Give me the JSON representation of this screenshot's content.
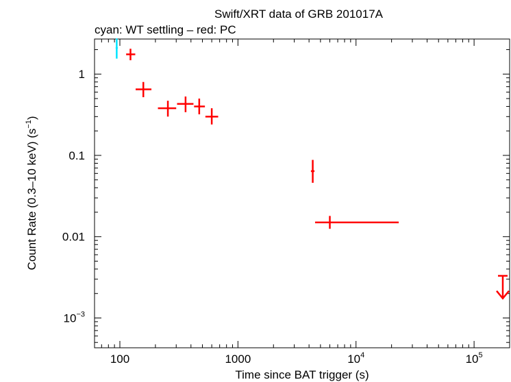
{
  "chart_data": {
    "type": "scatter",
    "title": "Swift/XRT data of GRB 201017A",
    "subtitle": "cyan: WT settling – red: PC",
    "xlabel": "Time since BAT trigger (s)",
    "ylabel": {
      "main": "Count Rate (0.3–10 keV) (s",
      "sup": "−1",
      "close": ")"
    },
    "xscale": "log",
    "yscale": "log",
    "xlim": [
      61,
      200000
    ],
    "ylim": [
      0.00043,
      2.7
    ],
    "x_ticks": [
      {
        "value": 100,
        "base": "100",
        "exp": ""
      },
      {
        "value": 1000,
        "base": "1000",
        "exp": ""
      },
      {
        "value": 10000,
        "base": "10",
        "exp": "4"
      },
      {
        "value": 100000,
        "base": "10",
        "exp": "5"
      }
    ],
    "y_ticks": [
      {
        "value": 1,
        "base": "1",
        "exp": ""
      },
      {
        "value": 0.1,
        "base": "0.1",
        "exp": ""
      },
      {
        "value": 0.01,
        "base": "0.01",
        "exp": ""
      },
      {
        "value": 0.001,
        "base": "10",
        "exp": "−3"
      }
    ],
    "grid": false,
    "series": [
      {
        "name": "WT settling",
        "color": "#00e5ff",
        "points": [
          {
            "x": 94,
            "xerr": [
              94,
              94
            ],
            "y": 2.1,
            "yerr": [
              1.55,
              2.75
            ]
          }
        ]
      },
      {
        "name": "PC",
        "color": "#ff0000",
        "points": [
          {
            "x": 123,
            "xerr": [
              113,
              135
            ],
            "y": 1.75,
            "yerr": [
              1.48,
              2.05
            ]
          },
          {
            "x": 158,
            "xerr": [
              136,
              185
            ],
            "y": 0.65,
            "yerr": [
              0.52,
              0.8
            ]
          },
          {
            "x": 255,
            "xerr": [
              210,
              300
            ],
            "y": 0.38,
            "yerr": [
              0.3,
              0.47
            ]
          },
          {
            "x": 360,
            "xerr": [
              305,
              420
            ],
            "y": 0.43,
            "yerr": [
              0.34,
              0.53
            ]
          },
          {
            "x": 470,
            "xerr": [
              425,
              525
            ],
            "y": 0.4,
            "yerr": [
              0.32,
              0.5
            ]
          },
          {
            "x": 600,
            "xerr": [
              530,
              680
            ],
            "y": 0.3,
            "yerr": [
              0.24,
              0.38
            ]
          },
          {
            "x": 4300,
            "xerr": [
              4150,
              4450
            ],
            "y": 0.064,
            "yerr": [
              0.046,
              0.088
            ]
          },
          {
            "x": 6000,
            "xerr": [
              4500,
              23000
            ],
            "y": 0.015,
            "yerr": [
              0.0125,
              0.018
            ]
          }
        ],
        "upper_limits": [
          {
            "x": 175000,
            "y": 0.0033
          }
        ]
      }
    ]
  }
}
